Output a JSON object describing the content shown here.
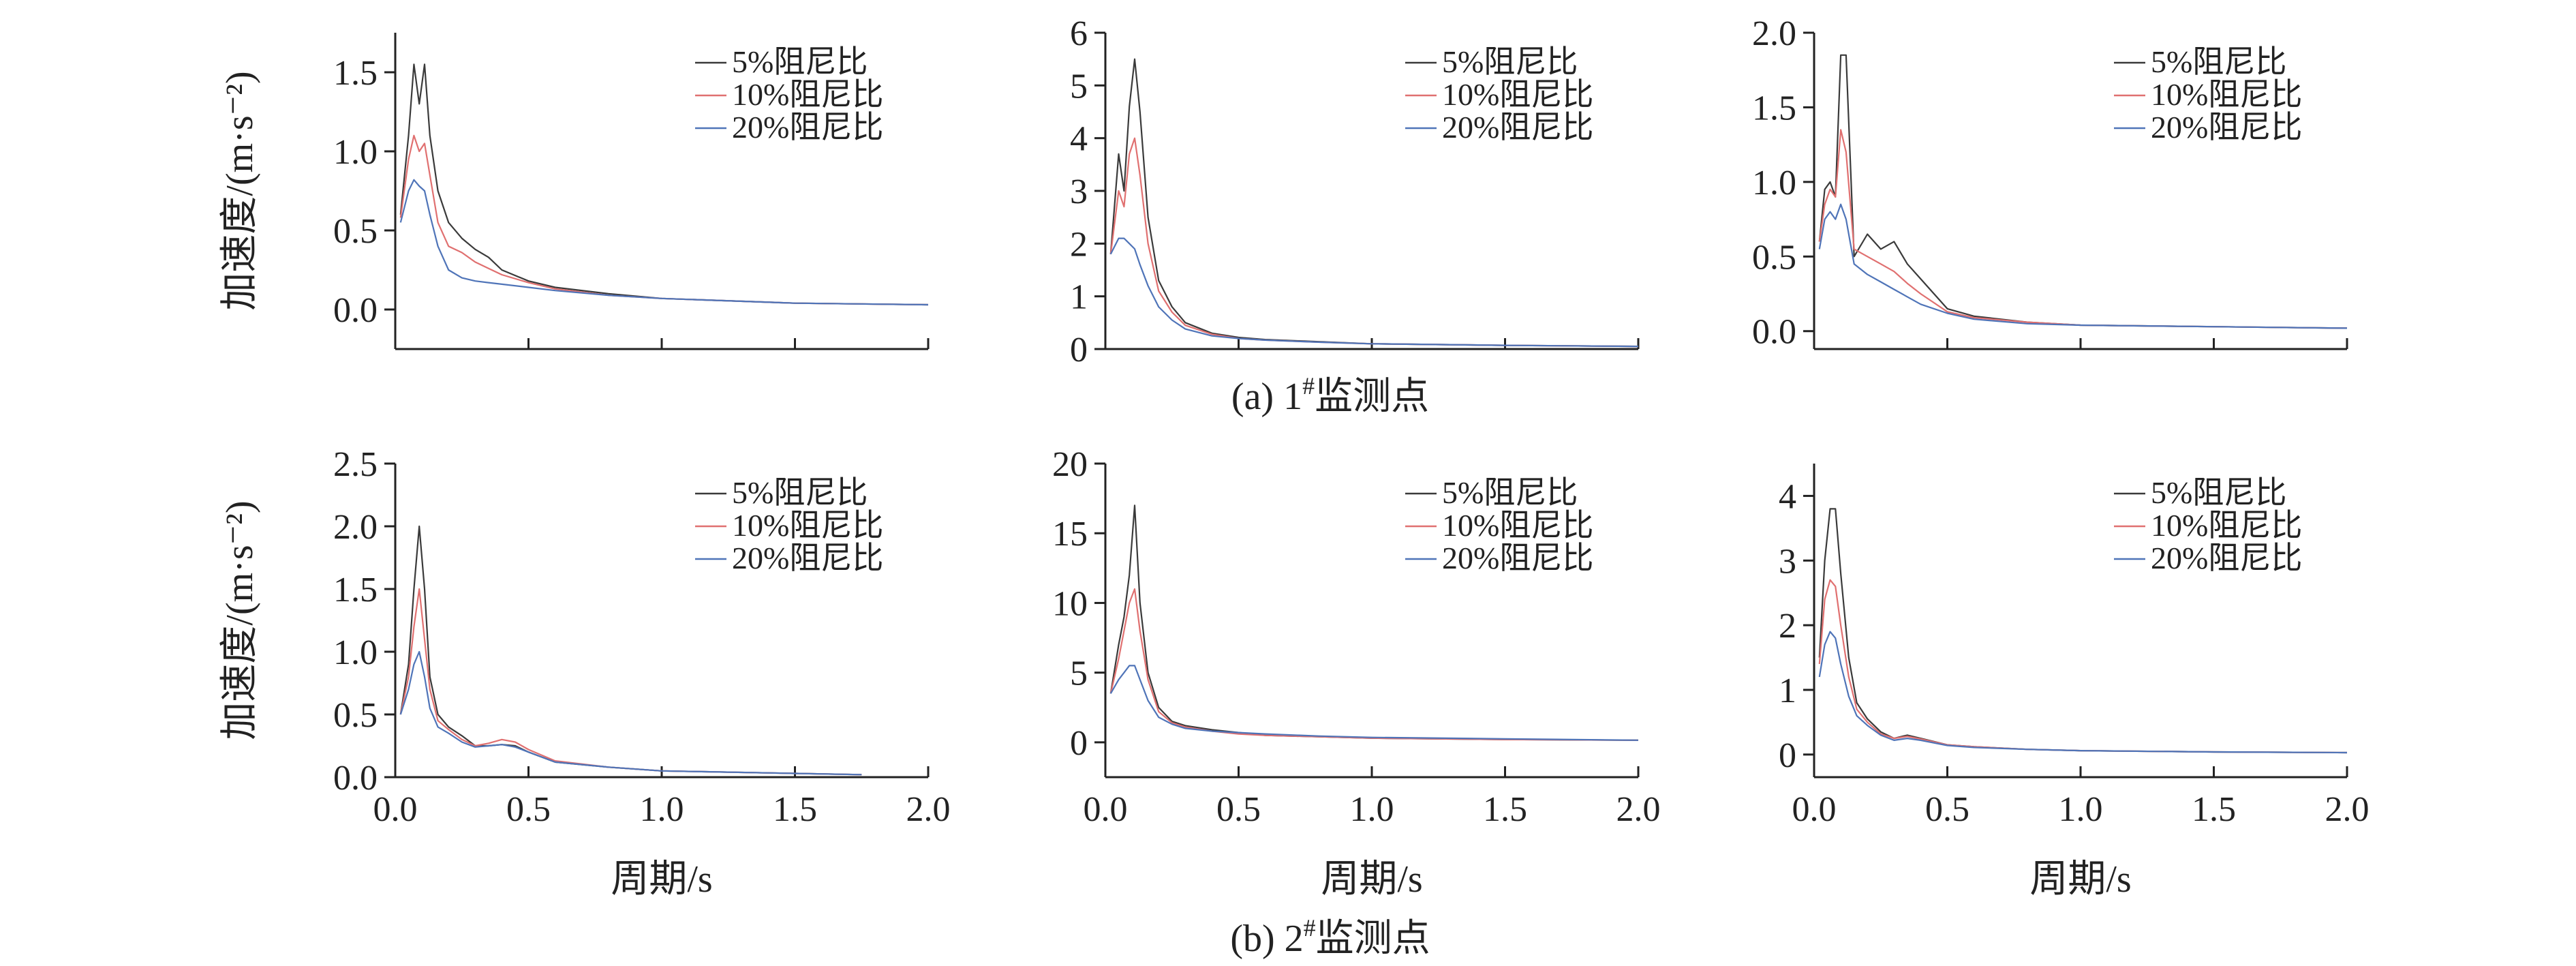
{
  "captions": {
    "row_a_prefix": "(a) 1",
    "row_a_suffix": "监测点",
    "row_b_prefix": "(b) 2",
    "row_b_suffix": "监测点",
    "sup": "#"
  },
  "colors": {
    "5%阻尼比": "#3a3a3a",
    "10%阻尼比": "#e07070",
    "20%阻尼比": "#4f74b8"
  },
  "chart_data": [
    {
      "type": "line",
      "ylabel": "加速度/(m·s⁻²)",
      "xlabel": "",
      "xlim": [
        0,
        2.0
      ],
      "ylim": [
        -0.25,
        1.75
      ],
      "xticks": [
        "0.0",
        "0.5",
        "1.0",
        "1.5",
        "2.0"
      ],
      "yticks": [
        "0.0",
        "0.5",
        "1.0",
        "1.5"
      ],
      "ytick_values": [
        0,
        0.5,
        1.0,
        1.5
      ],
      "legend_position": "top-right",
      "x": [
        0.02,
        0.05,
        0.07,
        0.09,
        0.11,
        0.13,
        0.16,
        0.2,
        0.25,
        0.3,
        0.35,
        0.4,
        0.5,
        0.6,
        0.8,
        1.0,
        1.5,
        2.0
      ],
      "series": [
        {
          "name": "5%阻尼比",
          "values": [
            0.6,
            1.1,
            1.55,
            1.3,
            1.55,
            1.1,
            0.75,
            0.55,
            0.45,
            0.38,
            0.33,
            0.25,
            0.18,
            0.14,
            0.1,
            0.07,
            0.04,
            0.03
          ]
        },
        {
          "name": "10%阻尼比",
          "values": [
            0.58,
            0.95,
            1.1,
            1.0,
            1.05,
            0.85,
            0.55,
            0.4,
            0.36,
            0.3,
            0.26,
            0.22,
            0.17,
            0.13,
            0.09,
            0.07,
            0.04,
            0.03
          ]
        },
        {
          "name": "20%阻尼比",
          "values": [
            0.55,
            0.75,
            0.82,
            0.78,
            0.75,
            0.6,
            0.4,
            0.25,
            0.2,
            0.18,
            0.17,
            0.16,
            0.14,
            0.12,
            0.09,
            0.07,
            0.04,
            0.03
          ]
        }
      ]
    },
    {
      "type": "line",
      "ylabel": "",
      "xlabel": "",
      "xlim": [
        0,
        2.0
      ],
      "ylim": [
        0,
        6
      ],
      "xticks": [
        "0.0",
        "0.5",
        "1.0",
        "1.5",
        "2.0"
      ],
      "yticks": [
        "0",
        "1",
        "2",
        "3",
        "4",
        "5",
        "6"
      ],
      "ytick_values": [
        0,
        1,
        2,
        3,
        4,
        5,
        6
      ],
      "legend_position": "top-right",
      "x": [
        0.02,
        0.05,
        0.07,
        0.09,
        0.11,
        0.13,
        0.16,
        0.2,
        0.25,
        0.3,
        0.4,
        0.5,
        0.6,
        0.8,
        1.0,
        1.5,
        2.0
      ],
      "series": [
        {
          "name": "5%阻尼比",
          "values": [
            1.8,
            3.7,
            3.0,
            4.6,
            5.5,
            4.5,
            2.5,
            1.3,
            0.8,
            0.5,
            0.3,
            0.22,
            0.18,
            0.14,
            0.1,
            0.07,
            0.05
          ]
        },
        {
          "name": "10%阻尼比",
          "values": [
            1.8,
            3.0,
            2.7,
            3.7,
            4.0,
            3.3,
            2.0,
            1.1,
            0.7,
            0.45,
            0.28,
            0.2,
            0.17,
            0.13,
            0.1,
            0.07,
            0.05
          ]
        },
        {
          "name": "20%阻尼比",
          "values": [
            1.8,
            2.1,
            2.1,
            2.0,
            1.9,
            1.6,
            1.2,
            0.8,
            0.55,
            0.38,
            0.25,
            0.2,
            0.17,
            0.13,
            0.1,
            0.07,
            0.05
          ]
        }
      ]
    },
    {
      "type": "line",
      "ylabel": "",
      "xlabel": "",
      "xlim": [
        0,
        2.0
      ],
      "ylim": [
        -0.12,
        2.0
      ],
      "xticks": [
        "0.0",
        "0.5",
        "1.0",
        "1.5",
        "2.0"
      ],
      "yticks": [
        "0.0",
        "0.5",
        "1.0",
        "1.5",
        "2.0"
      ],
      "ytick_values": [
        0,
        0.5,
        1.0,
        1.5,
        2.0
      ],
      "legend_position": "top-right",
      "x": [
        0.02,
        0.04,
        0.06,
        0.08,
        0.1,
        0.12,
        0.15,
        0.2,
        0.25,
        0.3,
        0.35,
        0.4,
        0.5,
        0.6,
        0.8,
        1.0,
        1.5,
        2.0
      ],
      "series": [
        {
          "name": "5%阻尼比",
          "values": [
            0.6,
            0.95,
            1.0,
            0.9,
            1.85,
            1.85,
            0.5,
            0.65,
            0.55,
            0.6,
            0.45,
            0.35,
            0.15,
            0.1,
            0.06,
            0.04,
            0.03,
            0.02
          ]
        },
        {
          "name": "10%阻尼比",
          "values": [
            0.6,
            0.85,
            0.95,
            0.9,
            1.35,
            1.2,
            0.55,
            0.5,
            0.45,
            0.4,
            0.32,
            0.25,
            0.13,
            0.09,
            0.06,
            0.04,
            0.03,
            0.02
          ]
        },
        {
          "name": "20%阻尼比",
          "values": [
            0.55,
            0.75,
            0.8,
            0.75,
            0.85,
            0.75,
            0.45,
            0.38,
            0.33,
            0.28,
            0.23,
            0.18,
            0.12,
            0.08,
            0.05,
            0.04,
            0.03,
            0.02
          ]
        }
      ]
    },
    {
      "type": "line",
      "ylabel": "加速度/(m·s⁻²)",
      "xlabel": "周期/s",
      "xlim": [
        0,
        2.0
      ],
      "ylim": [
        0,
        2.5
      ],
      "xticks": [
        "0.0",
        "0.5",
        "1.0",
        "1.5",
        "2.0"
      ],
      "yticks": [
        "0.0",
        "0.5",
        "1.0",
        "1.5",
        "2.0",
        "2.5"
      ],
      "ytick_values": [
        0,
        0.5,
        1.0,
        1.5,
        2.0,
        2.5
      ],
      "legend_position": "top-right",
      "x": [
        0.02,
        0.05,
        0.07,
        0.09,
        0.11,
        0.13,
        0.16,
        0.2,
        0.25,
        0.3,
        0.35,
        0.4,
        0.45,
        0.5,
        0.6,
        0.8,
        1.0,
        1.5,
        1.75
      ],
      "series": [
        {
          "name": "5%阻尼比",
          "values": [
            0.5,
            0.9,
            1.5,
            2.0,
            1.5,
            0.8,
            0.5,
            0.4,
            0.33,
            0.25,
            0.25,
            0.26,
            0.25,
            0.2,
            0.12,
            0.08,
            0.05,
            0.03,
            0.02
          ]
        },
        {
          "name": "10%阻尼比",
          "values": [
            0.5,
            0.8,
            1.2,
            1.5,
            1.1,
            0.7,
            0.45,
            0.38,
            0.3,
            0.25,
            0.27,
            0.3,
            0.28,
            0.22,
            0.13,
            0.08,
            0.05,
            0.03,
            0.02
          ]
        },
        {
          "name": "20%阻尼比",
          "values": [
            0.5,
            0.7,
            0.9,
            1.0,
            0.8,
            0.55,
            0.4,
            0.35,
            0.28,
            0.24,
            0.25,
            0.26,
            0.24,
            0.2,
            0.12,
            0.08,
            0.05,
            0.03,
            0.02
          ]
        }
      ]
    },
    {
      "type": "line",
      "ylabel": "",
      "xlabel": "周期/s",
      "xlim": [
        0,
        2.0
      ],
      "ylim": [
        -2.5,
        20
      ],
      "xticks": [
        "0.0",
        "0.5",
        "1.0",
        "1.5",
        "2.0"
      ],
      "yticks": [
        "0",
        "5",
        "10",
        "15",
        "20"
      ],
      "ytick_values": [
        0,
        5,
        10,
        15,
        20
      ],
      "legend_position": "top-right",
      "x": [
        0.02,
        0.05,
        0.07,
        0.09,
        0.11,
        0.13,
        0.16,
        0.2,
        0.25,
        0.3,
        0.4,
        0.5,
        0.6,
        0.8,
        1.0,
        1.5,
        2.0
      ],
      "series": [
        {
          "name": "5%阻尼比",
          "values": [
            3.5,
            7.0,
            9.0,
            12.0,
            17.0,
            10.0,
            5.0,
            2.5,
            1.5,
            1.2,
            0.9,
            0.7,
            0.5,
            0.4,
            0.3,
            0.2,
            0.15
          ]
        },
        {
          "name": "10%阻尼比",
          "values": [
            3.5,
            6.0,
            8.0,
            10.0,
            11.0,
            8.0,
            4.5,
            2.2,
            1.4,
            1.1,
            0.8,
            0.6,
            0.5,
            0.4,
            0.3,
            0.2,
            0.15
          ]
        },
        {
          "name": "20%阻尼比",
          "values": [
            3.5,
            4.5,
            5.0,
            5.5,
            5.5,
            4.5,
            3.0,
            1.8,
            1.3,
            1.0,
            0.8,
            0.7,
            0.6,
            0.45,
            0.35,
            0.25,
            0.15
          ]
        }
      ]
    },
    {
      "type": "line",
      "ylabel": "",
      "xlabel": "周期/s",
      "xlim": [
        0,
        2.0
      ],
      "ylim": [
        -0.35,
        4.5
      ],
      "xticks": [
        "0.0",
        "0.5",
        "1.0",
        "1.5",
        "2.0"
      ],
      "yticks": [
        "0",
        "1",
        "2",
        "3",
        "4"
      ],
      "ytick_values": [
        0,
        1,
        2,
        3,
        4
      ],
      "legend_position": "top-right",
      "x": [
        0.02,
        0.04,
        0.06,
        0.08,
        0.1,
        0.13,
        0.16,
        0.2,
        0.25,
        0.3,
        0.35,
        0.4,
        0.5,
        0.6,
        0.8,
        1.0,
        1.5,
        2.0
      ],
      "series": [
        {
          "name": "5%阻尼比",
          "values": [
            1.5,
            3.0,
            3.8,
            3.8,
            2.8,
            1.5,
            0.8,
            0.55,
            0.35,
            0.25,
            0.3,
            0.25,
            0.15,
            0.12,
            0.08,
            0.06,
            0.04,
            0.03
          ]
        },
        {
          "name": "10%阻尼比",
          "values": [
            1.4,
            2.4,
            2.7,
            2.6,
            2.0,
            1.2,
            0.7,
            0.5,
            0.32,
            0.25,
            0.28,
            0.24,
            0.15,
            0.12,
            0.08,
            0.06,
            0.04,
            0.03
          ]
        },
        {
          "name": "20%阻尼比",
          "values": [
            1.2,
            1.7,
            1.9,
            1.8,
            1.4,
            0.9,
            0.6,
            0.45,
            0.3,
            0.22,
            0.25,
            0.22,
            0.14,
            0.11,
            0.08,
            0.06,
            0.04,
            0.03
          ]
        }
      ]
    }
  ]
}
